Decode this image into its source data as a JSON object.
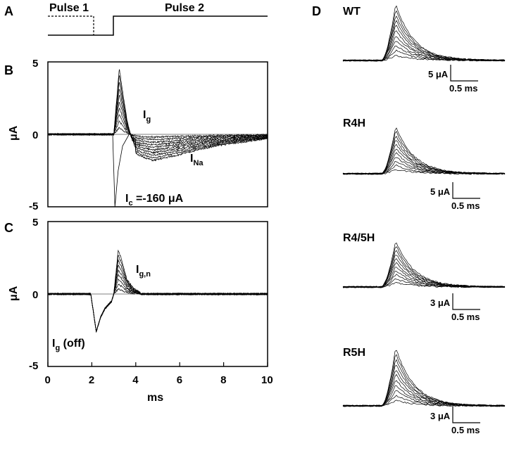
{
  "panel_labels": {
    "a": "A",
    "b": "B",
    "c": "C",
    "d": "D"
  },
  "protocol": {
    "pulse1": "Pulse 1",
    "pulse2": "Pulse 2"
  },
  "chart_data": [
    {
      "type": "line",
      "panel": "B",
      "ylabel": "μA",
      "xlabel": "",
      "xlim": [
        0,
        10
      ],
      "ylim": [
        -5,
        5
      ],
      "yticks": [
        "5",
        "0",
        "-5"
      ],
      "zero_line": true,
      "annotations": {
        "ig": "I",
        "ig_sub": "g",
        "ina": "I",
        "ina_sub": "Na",
        "ic": "I",
        "ic_sub": "c",
        "ic_value": " =-160 μA"
      },
      "series": [
        {
          "name": "gating_peak_envelope",
          "x": [
            3.0,
            3.1,
            3.25,
            3.4,
            3.6,
            3.8,
            4.0
          ],
          "y": [
            0,
            2.0,
            4.9,
            3.5,
            1.8,
            0.8,
            0.3
          ]
        },
        {
          "name": "sodium_current_envelope",
          "x": [
            3.0,
            3.6,
            4.2,
            4.8,
            6.0,
            7.0,
            8.0,
            9.0,
            10.0
          ],
          "y": [
            0,
            -0.8,
            -1.5,
            -1.8,
            -1.4,
            -1.0,
            -0.7,
            -0.5,
            -0.3
          ]
        },
        {
          "name": "capacity_transient",
          "x": [
            2.95,
            3.05,
            3.2,
            3.4,
            3.7
          ],
          "y": [
            0,
            -5.0,
            -2.5,
            -0.8,
            0
          ]
        }
      ]
    },
    {
      "type": "line",
      "panel": "C",
      "ylabel": "μA",
      "xlabel": "ms",
      "xlim": [
        0,
        10
      ],
      "ylim": [
        -5,
        5
      ],
      "xticks": [
        "0",
        "2",
        "4",
        "6",
        "8",
        "10"
      ],
      "yticks": [
        "5",
        "0",
        "-5"
      ],
      "zero_line": true,
      "annotations": {
        "ign": "I",
        "ign_sub": "g,n",
        "igoff": "I",
        "igoff_sub": "g",
        "igoff_suffix": " (off)"
      },
      "series": [
        {
          "name": "gating_on_peak",
          "x": [
            3.0,
            3.1,
            3.2,
            3.35,
            3.6,
            3.9,
            4.2
          ],
          "y": [
            0,
            1.5,
            3.0,
            2.4,
            1.0,
            0.4,
            0.1
          ]
        },
        {
          "name": "gating_off_transient",
          "x": [
            1.95,
            2.05,
            2.2,
            2.4,
            2.6,
            2.9,
            3.0
          ],
          "y": [
            0,
            -1.0,
            -2.6,
            -1.6,
            -1.0,
            -0.5,
            0
          ]
        }
      ]
    }
  ],
  "panel_d": [
    {
      "label": "WT",
      "scale_y": "5 μA",
      "scale_x": "0.5 ms"
    },
    {
      "label": "R4H",
      "scale_y": "5 μA",
      "scale_x": "0.5 ms"
    },
    {
      "label": "R4/5H",
      "scale_y": "3 μA",
      "scale_x": "0.5 ms"
    },
    {
      "label": "R5H",
      "scale_y": "3 μA",
      "scale_x": "0.5 ms"
    }
  ]
}
